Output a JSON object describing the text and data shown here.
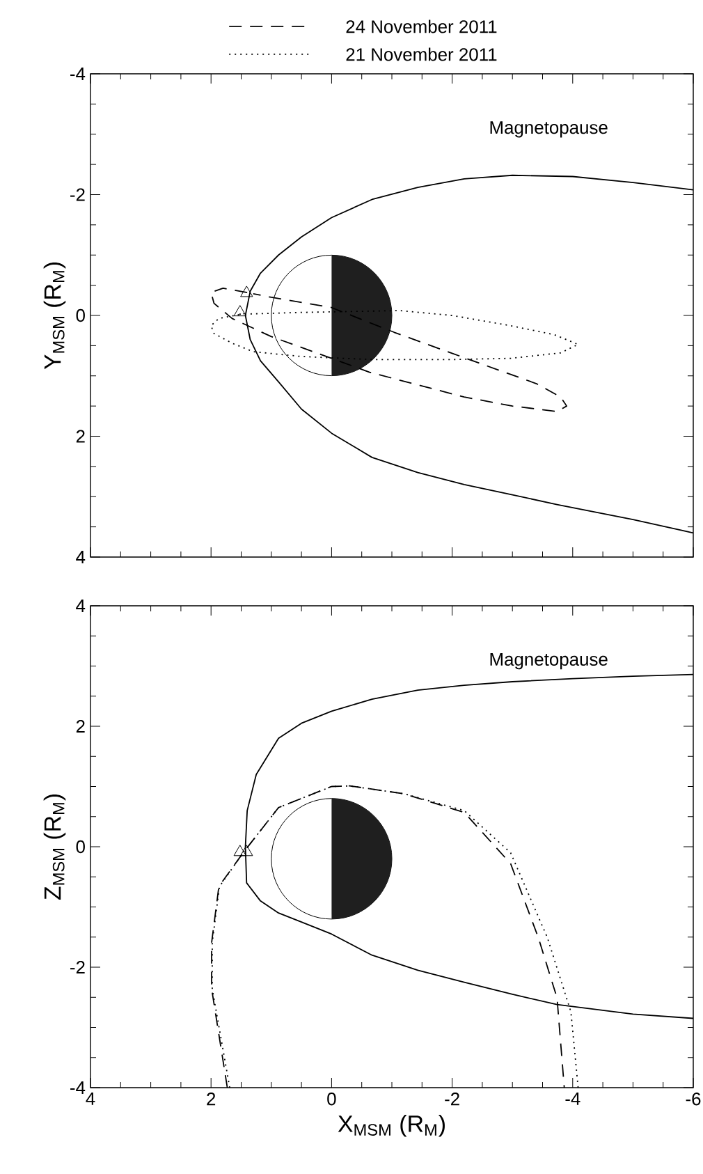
{
  "chart_data": [
    {
      "type": "line",
      "xlim": [
        4,
        -6
      ],
      "ylim": [
        4,
        -4
      ],
      "xticks": [
        4,
        2,
        0,
        -2,
        -4,
        -6
      ],
      "yticks": [
        -4,
        -2,
        0,
        2,
        4
      ],
      "ylabel": "Y$_{MSM}$ (R$_{M}$)",
      "tick_labels": "y",
      "legend": "top",
      "annotations": [
        "Magnetopause"
      ],
      "series": [
        {
          "color": "#000000",
          "line_style": "solid",
          "x": [
            -6.0,
            -5.0,
            -4.0,
            -3.0,
            -2.2,
            -1.43,
            -0.67,
            0,
            0.5,
            0.88,
            1.18,
            1.35,
            1.43,
            1.35,
            1.18,
            0.88,
            0.5,
            0,
            -0.67,
            -1.43,
            -2.2,
            -3.0,
            -3.74,
            -5.0,
            -6.0
          ],
          "values": [
            -2.08,
            -2.2,
            -2.3,
            -2.32,
            -2.26,
            -2.12,
            -1.92,
            -1.62,
            -1.3,
            -1.0,
            -0.7,
            -0.4,
            0,
            0.4,
            0.75,
            1.1,
            1.55,
            1.95,
            2.35,
            2.6,
            2.8,
            2.97,
            3.13,
            3.38,
            3.6
          ]
        },
        {
          "name": "24 November 2011",
          "color": "#000000",
          "line_style": "dashed",
          "x": [
            1.4,
            1.8,
            2.0,
            1.95,
            1.65,
            1.0,
            0,
            -0.63,
            -1.43,
            -2.2,
            -3.0,
            -3.74,
            -3.9,
            -3.8,
            -3.4,
            -2.2,
            -1.04,
            0,
            1.0,
            1.3
          ],
          "values": [
            -0.38,
            -0.45,
            -0.38,
            -0.2,
            0.05,
            0.35,
            0.71,
            0.94,
            1.15,
            1.35,
            1.5,
            1.59,
            1.5,
            1.35,
            1.13,
            0.7,
            0.28,
            -0.13,
            -0.3,
            -0.36
          ]
        },
        {
          "name": "21 November 2011",
          "color": "#000000",
          "line_style": "dotted",
          "x": [
            1.53,
            0.5,
            -1.13,
            -2.0,
            -2.97,
            -3.7,
            -4.09,
            -3.8,
            -2.97,
            -2.0,
            -0.67,
            0.5,
            1.3,
            1.65,
            1.95,
            2.0,
            1.87,
            1.45
          ],
          "values": [
            -0.02,
            -0.05,
            -0.08,
            0.0,
            0.17,
            0.32,
            0.48,
            0.62,
            0.71,
            0.73,
            0.73,
            0.68,
            0.6,
            0.46,
            0.3,
            0.17,
            0.05,
            -0.03
          ]
        },
        {
          "type": "scatter",
          "color": "#000000",
          "marker": "triangle",
          "x": [
            1.41,
            1.52
          ],
          "values": [
            -0.37,
            -0.05
          ]
        }
      ]
    },
    {
      "type": "line",
      "xlim": [
        4,
        -6
      ],
      "ylim": [
        -4,
        4
      ],
      "xticks": [
        4,
        2,
        0,
        -2,
        -4,
        -6
      ],
      "yticks": [
        -4,
        -2,
        0,
        2,
        4
      ],
      "xlabel": "X$_{MSM}$ (R$_{M}$)",
      "ylabel": "Z$_{MSM}$ (R$_{M}$)",
      "annotations": [
        "Magnetopause"
      ],
      "series": [
        {
          "color": "#000000",
          "line_style": "solid",
          "x": [
            -6.0,
            -5.0,
            -4.0,
            -3.0,
            -2.2,
            -1.43,
            -0.67,
            0,
            0.5,
            0.88,
            1.25,
            1.4,
            1.43,
            1.41,
            1.18,
            0.88,
            0.5,
            0,
            -0.67,
            -1.43,
            -2.2,
            -3.0,
            -3.74,
            -5.0,
            -6.0
          ],
          "values": [
            2.86,
            2.83,
            2.79,
            2.74,
            2.68,
            2.6,
            2.45,
            2.25,
            2.05,
            1.8,
            1.2,
            0.6,
            0,
            -0.6,
            -0.9,
            -1.1,
            -1.25,
            -1.45,
            -1.8,
            -2.05,
            -2.25,
            -2.45,
            -2.62,
            -2.78,
            -2.85
          ]
        },
        {
          "color": "#000000",
          "line_style": "dashed",
          "x": [
            1.73,
            1.99,
            1.99,
            1.87,
            1.46,
            0.88,
            0,
            -0.3,
            -1.2,
            -2.2,
            -2.97,
            -3.43,
            -3.74,
            -3.86
          ],
          "values": [
            -4,
            -2.36,
            -1.59,
            -0.66,
            -0.09,
            0.65,
            1.0,
            1.01,
            0.88,
            0.57,
            -0.28,
            -1.51,
            -2.51,
            -4
          ]
        },
        {
          "color": "#000000",
          "line_style": "dotted",
          "x": [
            1.69,
            1.98,
            1.98,
            1.86,
            1.46,
            0.88,
            0,
            -0.3,
            -1.2,
            -2.2,
            -2.97,
            -3.58,
            -3.97,
            -4.09
          ],
          "values": [
            -4,
            -2.36,
            -1.59,
            -0.66,
            -0.09,
            0.65,
            1.0,
            1.01,
            0.88,
            0.6,
            -0.1,
            -1.51,
            -2.74,
            -4
          ]
        },
        {
          "type": "scatter",
          "color": "#000000",
          "marker": "triangle",
          "x": [
            1.52,
            1.41
          ],
          "values": [
            -0.09,
            -0.09
          ]
        }
      ]
    }
  ]
}
